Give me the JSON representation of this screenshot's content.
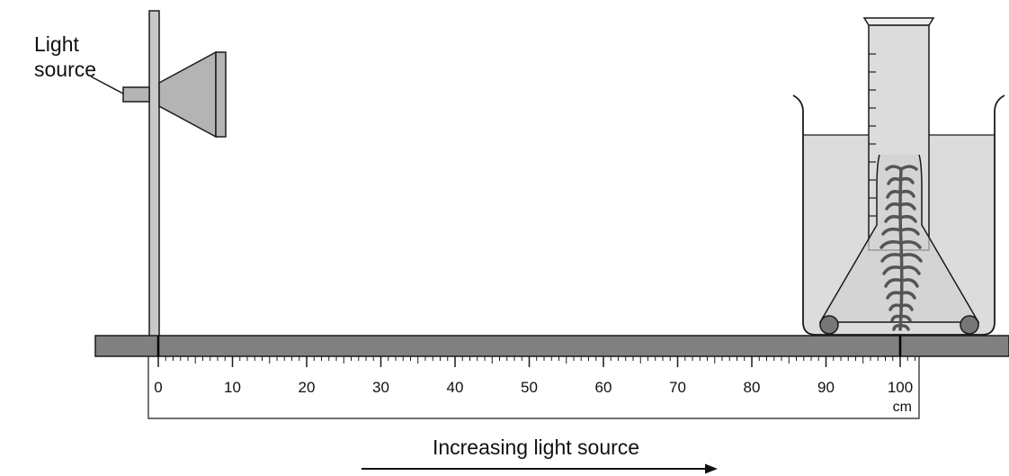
{
  "labels": {
    "light_source_line1": "Light",
    "light_source_line2": "source",
    "ruler_unit": "cm",
    "direction_caption": "Increasing light source"
  },
  "ruler": {
    "tick_labels": [
      "0",
      "10",
      "20",
      "30",
      "40",
      "50",
      "60",
      "70",
      "80",
      "90",
      "100"
    ]
  },
  "colors": {
    "bench": "#808080",
    "stand": "#c8c8c8",
    "lamp": "#b4b4b4",
    "water": "#dcdcdc",
    "outline": "#1a1a1a",
    "weed": "#555555"
  }
}
